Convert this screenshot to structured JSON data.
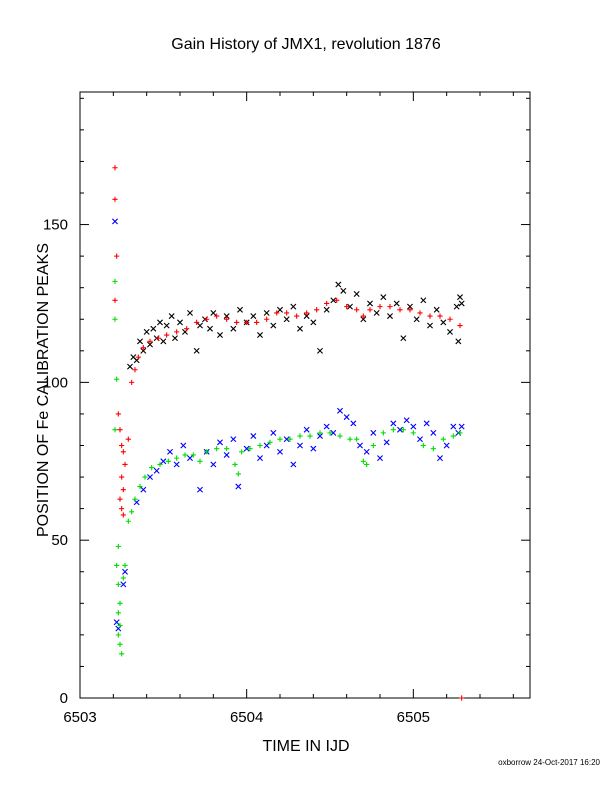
{
  "chart_data": {
    "type": "scatter",
    "title": "Gain History of JMX1, revolution 1876",
    "xlabel": "TIME IN IJD",
    "ylabel": "POSITION OF Fe CALIBRATION PEAKS",
    "xlim": [
      6503,
      6505.7
    ],
    "ylim": [
      0,
      192
    ],
    "x_ticks": [
      6503,
      6504,
      6505
    ],
    "y_ticks": [
      0,
      50,
      100,
      150
    ],
    "grid": false,
    "series": [
      {
        "marker": "x",
        "color": "#000000",
        "points": [
          [
            6503.3,
            105
          ],
          [
            6503.32,
            108
          ],
          [
            6503.34,
            107
          ],
          [
            6503.36,
            113
          ],
          [
            6503.38,
            110
          ],
          [
            6503.4,
            116
          ],
          [
            6503.42,
            112
          ],
          [
            6503.44,
            117
          ],
          [
            6503.46,
            114
          ],
          [
            6503.48,
            119
          ],
          [
            6503.5,
            113
          ],
          [
            6503.52,
            118
          ],
          [
            6503.55,
            121
          ],
          [
            6503.57,
            114
          ],
          [
            6503.6,
            119
          ],
          [
            6503.63,
            116
          ],
          [
            6503.66,
            122
          ],
          [
            6503.7,
            110
          ],
          [
            6503.72,
            118
          ],
          [
            6503.75,
            120
          ],
          [
            6503.78,
            117
          ],
          [
            6503.8,
            122
          ],
          [
            6503.84,
            115
          ],
          [
            6503.88,
            121
          ],
          [
            6503.92,
            117
          ],
          [
            6503.96,
            123
          ],
          [
            6504.0,
            119
          ],
          [
            6504.04,
            121
          ],
          [
            6504.08,
            115
          ],
          [
            6504.12,
            122
          ],
          [
            6504.16,
            118
          ],
          [
            6504.2,
            123
          ],
          [
            6504.24,
            120
          ],
          [
            6504.28,
            124
          ],
          [
            6504.32,
            117
          ],
          [
            6504.36,
            121
          ],
          [
            6504.4,
            119
          ],
          [
            6504.44,
            110
          ],
          [
            6504.48,
            123
          ],
          [
            6504.52,
            126
          ],
          [
            6504.55,
            131
          ],
          [
            6504.58,
            129
          ],
          [
            6504.62,
            124
          ],
          [
            6504.66,
            128
          ],
          [
            6504.7,
            120
          ],
          [
            6504.74,
            125
          ],
          [
            6504.78,
            122
          ],
          [
            6504.82,
            127
          ],
          [
            6504.86,
            121
          ],
          [
            6504.9,
            125
          ],
          [
            6504.94,
            114
          ],
          [
            6504.98,
            124
          ],
          [
            6505.02,
            120
          ],
          [
            6505.06,
            126
          ],
          [
            6505.1,
            118
          ],
          [
            6505.14,
            123
          ],
          [
            6505.18,
            119
          ],
          [
            6505.22,
            116
          ],
          [
            6505.26,
            124
          ],
          [
            6505.28,
            127
          ],
          [
            6505.29,
            125
          ],
          [
            6505.27,
            113
          ]
        ]
      },
      {
        "marker": "plus",
        "color": "#ff0000",
        "points": [
          [
            6503.21,
            168
          ],
          [
            6503.21,
            158
          ],
          [
            6503.22,
            140
          ],
          [
            6503.21,
            126
          ],
          [
            6503.23,
            90
          ],
          [
            6503.24,
            85
          ],
          [
            6503.25,
            80
          ],
          [
            6503.26,
            78
          ],
          [
            6503.27,
            74
          ],
          [
            6503.25,
            70
          ],
          [
            6503.26,
            66
          ],
          [
            6503.24,
            63
          ],
          [
            6503.25,
            60
          ],
          [
            6503.26,
            58
          ],
          [
            6503.29,
            82
          ],
          [
            6503.31,
            100
          ],
          [
            6503.33,
            104
          ],
          [
            6503.35,
            108
          ],
          [
            6503.38,
            111
          ],
          [
            6503.42,
            113
          ],
          [
            6503.47,
            114
          ],
          [
            6503.52,
            115
          ],
          [
            6503.58,
            116
          ],
          [
            6503.64,
            117
          ],
          [
            6503.7,
            119
          ],
          [
            6503.76,
            120
          ],
          [
            6503.82,
            121
          ],
          [
            6503.88,
            120
          ],
          [
            6503.94,
            119
          ],
          [
            6504.0,
            119
          ],
          [
            6504.06,
            119
          ],
          [
            6504.12,
            120
          ],
          [
            6504.18,
            122
          ],
          [
            6504.24,
            122
          ],
          [
            6504.3,
            121
          ],
          [
            6504.36,
            122
          ],
          [
            6504.42,
            123
          ],
          [
            6504.48,
            125
          ],
          [
            6504.54,
            126
          ],
          [
            6504.6,
            124
          ],
          [
            6504.66,
            123
          ],
          [
            6504.7,
            121
          ],
          [
            6504.74,
            123
          ],
          [
            6504.8,
            124
          ],
          [
            6504.86,
            124
          ],
          [
            6504.92,
            123
          ],
          [
            6504.98,
            123
          ],
          [
            6505.04,
            122
          ],
          [
            6505.1,
            121
          ],
          [
            6505.16,
            121
          ],
          [
            6505.22,
            120
          ],
          [
            6505.28,
            118
          ],
          [
            6505.29,
            0
          ]
        ]
      },
      {
        "marker": "x",
        "color": "#0000ff",
        "points": [
          [
            6503.21,
            151
          ],
          [
            6503.22,
            24
          ],
          [
            6503.23,
            22
          ],
          [
            6503.26,
            36
          ],
          [
            6503.27,
            40
          ],
          [
            6503.34,
            62
          ],
          [
            6503.38,
            66
          ],
          [
            6503.42,
            70
          ],
          [
            6503.46,
            72
          ],
          [
            6503.5,
            75
          ],
          [
            6503.54,
            78
          ],
          [
            6503.58,
            74
          ],
          [
            6503.62,
            80
          ],
          [
            6503.66,
            76
          ],
          [
            6503.72,
            66
          ],
          [
            6503.76,
            78
          ],
          [
            6503.8,
            74
          ],
          [
            6503.84,
            81
          ],
          [
            6503.88,
            77
          ],
          [
            6503.92,
            82
          ],
          [
            6503.95,
            67
          ],
          [
            6504.0,
            79
          ],
          [
            6504.04,
            83
          ],
          [
            6504.08,
            76
          ],
          [
            6504.12,
            80
          ],
          [
            6504.16,
            84
          ],
          [
            6504.2,
            78
          ],
          [
            6504.24,
            82
          ],
          [
            6504.28,
            74
          ],
          [
            6504.32,
            80
          ],
          [
            6504.36,
            85
          ],
          [
            6504.4,
            79
          ],
          [
            6504.44,
            83
          ],
          [
            6504.48,
            86
          ],
          [
            6504.52,
            84
          ],
          [
            6504.56,
            91
          ],
          [
            6504.6,
            89
          ],
          [
            6504.64,
            87
          ],
          [
            6504.68,
            80
          ],
          [
            6504.72,
            78
          ],
          [
            6504.76,
            84
          ],
          [
            6504.8,
            76
          ],
          [
            6504.84,
            81
          ],
          [
            6504.88,
            87
          ],
          [
            6504.92,
            85
          ],
          [
            6504.96,
            88
          ],
          [
            6505.0,
            86
          ],
          [
            6505.04,
            82
          ],
          [
            6505.08,
            87
          ],
          [
            6505.12,
            84
          ],
          [
            6505.16,
            76
          ],
          [
            6505.2,
            80
          ],
          [
            6505.24,
            86
          ],
          [
            6505.27,
            84
          ],
          [
            6505.29,
            86
          ]
        ]
      },
      {
        "marker": "plus",
        "color": "#00dd00",
        "points": [
          [
            6503.21,
            132
          ],
          [
            6503.21,
            120
          ],
          [
            6503.22,
            101
          ],
          [
            6503.21,
            85
          ],
          [
            6503.23,
            48
          ],
          [
            6503.22,
            42
          ],
          [
            6503.23,
            36
          ],
          [
            6503.24,
            30
          ],
          [
            6503.23,
            27
          ],
          [
            6503.24,
            23
          ],
          [
            6503.23,
            20
          ],
          [
            6503.24,
            17
          ],
          [
            6503.25,
            14
          ],
          [
            6503.26,
            38
          ],
          [
            6503.27,
            42
          ],
          [
            6503.29,
            56
          ],
          [
            6503.31,
            59
          ],
          [
            6503.33,
            63
          ],
          [
            6503.36,
            67
          ],
          [
            6503.39,
            70
          ],
          [
            6503.43,
            73
          ],
          [
            6503.48,
            74
          ],
          [
            6503.53,
            75
          ],
          [
            6503.58,
            76
          ],
          [
            6503.63,
            77
          ],
          [
            6503.68,
            77
          ],
          [
            6503.72,
            75
          ],
          [
            6503.76,
            78
          ],
          [
            6503.82,
            79
          ],
          [
            6503.88,
            79
          ],
          [
            6503.93,
            74
          ],
          [
            6503.95,
            71
          ],
          [
            6503.97,
            78
          ],
          [
            6504.02,
            79
          ],
          [
            6504.08,
            80
          ],
          [
            6504.14,
            81
          ],
          [
            6504.2,
            82
          ],
          [
            6504.26,
            82
          ],
          [
            6504.32,
            83
          ],
          [
            6504.38,
            83
          ],
          [
            6504.44,
            84
          ],
          [
            6504.5,
            84
          ],
          [
            6504.56,
            83
          ],
          [
            6504.62,
            82
          ],
          [
            6504.66,
            82
          ],
          [
            6504.7,
            75
          ],
          [
            6504.72,
            74
          ],
          [
            6504.76,
            80
          ],
          [
            6504.82,
            84
          ],
          [
            6504.88,
            85
          ],
          [
            6504.94,
            85
          ],
          [
            6505.0,
            84
          ],
          [
            6505.06,
            80
          ],
          [
            6505.12,
            79
          ],
          [
            6505.18,
            82
          ],
          [
            6505.24,
            83
          ],
          [
            6505.28,
            84
          ]
        ]
      }
    ]
  },
  "footer": {
    "credit": "oxborrow 24-Oct-2017 16:20"
  }
}
